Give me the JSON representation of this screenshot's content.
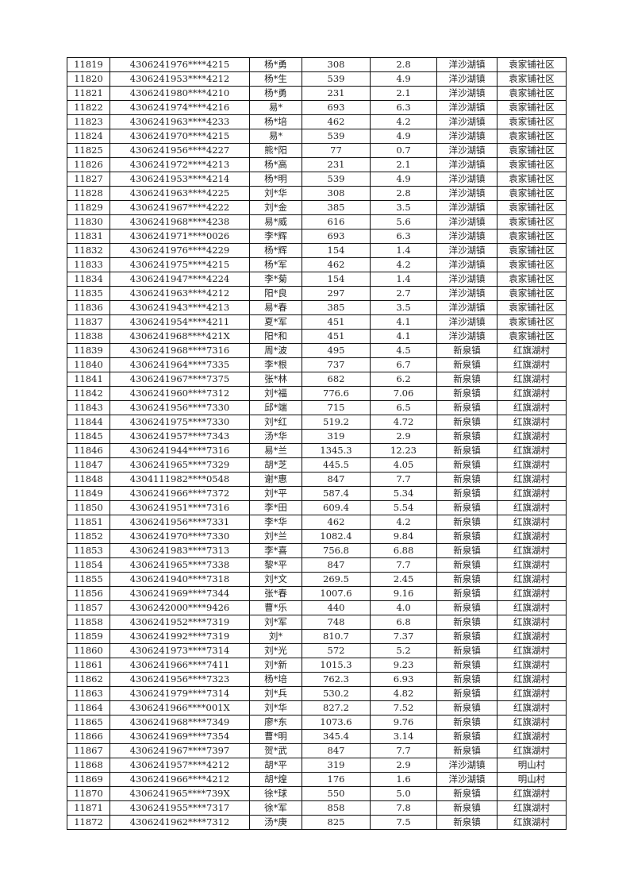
{
  "rows": [
    [
      "11819",
      "4306241976****4215",
      "杨*勇",
      "308",
      "2.8",
      "洋沙湖镇",
      "袁家铺社区"
    ],
    [
      "11820",
      "4306241953****4212",
      "杨*生",
      "539",
      "4.9",
      "洋沙湖镇",
      "袁家铺社区"
    ],
    [
      "11821",
      "4306241980****4210",
      "杨*勇",
      "231",
      "2.1",
      "洋沙湖镇",
      "袁家铺社区"
    ],
    [
      "11822",
      "4306241974****4216",
      "易*",
      "693",
      "6.3",
      "洋沙湖镇",
      "袁家铺社区"
    ],
    [
      "11823",
      "4306241963****4233",
      "杨*培",
      "462",
      "4.2",
      "洋沙湖镇",
      "袁家铺社区"
    ],
    [
      "11824",
      "4306241970****4215",
      "易*",
      "539",
      "4.9",
      "洋沙湖镇",
      "袁家铺社区"
    ],
    [
      "11825",
      "4306241956****4227",
      "熊*阳",
      "77",
      "0.7",
      "洋沙湖镇",
      "袁家铺社区"
    ],
    [
      "11826",
      "4306241972****4213",
      "杨*高",
      "231",
      "2.1",
      "洋沙湖镇",
      "袁家铺社区"
    ],
    [
      "11827",
      "4306241953****4214",
      "杨*明",
      "539",
      "4.9",
      "洋沙湖镇",
      "袁家铺社区"
    ],
    [
      "11828",
      "4306241963****4225",
      "刘*华",
      "308",
      "2.8",
      "洋沙湖镇",
      "袁家铺社区"
    ],
    [
      "11829",
      "4306241967****4222",
      "刘*金",
      "385",
      "3.5",
      "洋沙湖镇",
      "袁家铺社区"
    ],
    [
      "11830",
      "4306241968****4238",
      "易*威",
      "616",
      "5.6",
      "洋沙湖镇",
      "袁家铺社区"
    ],
    [
      "11831",
      "4306241971****0026",
      "李*辉",
      "693",
      "6.3",
      "洋沙湖镇",
      "袁家铺社区"
    ],
    [
      "11832",
      "4306241976****4229",
      "杨*辉",
      "154",
      "1.4",
      "洋沙湖镇",
      "袁家铺社区"
    ],
    [
      "11833",
      "4306241975****4215",
      "杨*军",
      "462",
      "4.2",
      "洋沙湖镇",
      "袁家铺社区"
    ],
    [
      "11834",
      "4306241947****4224",
      "李*菊",
      "154",
      "1.4",
      "洋沙湖镇",
      "袁家铺社区"
    ],
    [
      "11835",
      "4306241963****4212",
      "阳*良",
      "297",
      "2.7",
      "洋沙湖镇",
      "袁家铺社区"
    ],
    [
      "11836",
      "4306241943****4213",
      "易*春",
      "385",
      "3.5",
      "洋沙湖镇",
      "袁家铺社区"
    ],
    [
      "11837",
      "4306241954****4211",
      "夏*军",
      "451",
      "4.1",
      "洋沙湖镇",
      "袁家铺社区"
    ],
    [
      "11838",
      "4306241968****421X",
      "阳*和",
      "451",
      "4.1",
      "洋沙湖镇",
      "袁家铺社区"
    ],
    [
      "11839",
      "4306241968****7316",
      "周*波",
      "495",
      "4.5",
      "新泉镇",
      "红旗湖村"
    ],
    [
      "11840",
      "4306241964****7335",
      "李*根",
      "737",
      "6.7",
      "新泉镇",
      "红旗湖村"
    ],
    [
      "11841",
      "4306241967****7375",
      "张*林",
      "682",
      "6.2",
      "新泉镇",
      "红旗湖村"
    ],
    [
      "11842",
      "4306241960****7312",
      "刘*福",
      "776.6",
      "7.06",
      "新泉镇",
      "红旗湖村"
    ],
    [
      "11843",
      "4306241956****7330",
      "邱*端",
      "715",
      "6.5",
      "新泉镇",
      "红旗湖村"
    ],
    [
      "11844",
      "4306241975****7330",
      "刘*红",
      "519.2",
      "4.72",
      "新泉镇",
      "红旗湖村"
    ],
    [
      "11845",
      "4306241957****7343",
      "汤*华",
      "319",
      "2.9",
      "新泉镇",
      "红旗湖村"
    ],
    [
      "11846",
      "4306241944****7316",
      "易*兰",
      "1345.3",
      "12.23",
      "新泉镇",
      "红旗湖村"
    ],
    [
      "11847",
      "4306241965****7329",
      "胡*芝",
      "445.5",
      "4.05",
      "新泉镇",
      "红旗湖村"
    ],
    [
      "11848",
      "4304111982****0548",
      "谢*惠",
      "847",
      "7.7",
      "新泉镇",
      "红旗湖村"
    ],
    [
      "11849",
      "4306241966****7372",
      "刘*平",
      "587.4",
      "5.34",
      "新泉镇",
      "红旗湖村"
    ],
    [
      "11850",
      "4306241951****7316",
      "李*田",
      "609.4",
      "5.54",
      "新泉镇",
      "红旗湖村"
    ],
    [
      "11851",
      "4306241956****7331",
      "李*华",
      "462",
      "4.2",
      "新泉镇",
      "红旗湖村"
    ],
    [
      "11852",
      "4306241970****7330",
      "刘*兰",
      "1082.4",
      "9.84",
      "新泉镇",
      "红旗湖村"
    ],
    [
      "11853",
      "4306241983****7313",
      "李*喜",
      "756.8",
      "6.88",
      "新泉镇",
      "红旗湖村"
    ],
    [
      "11854",
      "4306241965****7338",
      "黎*平",
      "847",
      "7.7",
      "新泉镇",
      "红旗湖村"
    ],
    [
      "11855",
      "4306241940****7318",
      "刘*文",
      "269.5",
      "2.45",
      "新泉镇",
      "红旗湖村"
    ],
    [
      "11856",
      "4306241969****7344",
      "张*春",
      "1007.6",
      "9.16",
      "新泉镇",
      "红旗湖村"
    ],
    [
      "11857",
      "4306242000****9426",
      "曹*乐",
      "440",
      "4.0",
      "新泉镇",
      "红旗湖村"
    ],
    [
      "11858",
      "4306241952****7319",
      "刘*军",
      "748",
      "6.8",
      "新泉镇",
      "红旗湖村"
    ],
    [
      "11859",
      "4306241992****7319",
      "刘*",
      "810.7",
      "7.37",
      "新泉镇",
      "红旗湖村"
    ],
    [
      "11860",
      "4306241973****7314",
      "刘*光",
      "572",
      "5.2",
      "新泉镇",
      "红旗湖村"
    ],
    [
      "11861",
      "4306241966****7411",
      "刘*新",
      "1015.3",
      "9.23",
      "新泉镇",
      "红旗湖村"
    ],
    [
      "11862",
      "4306241956****7323",
      "杨*培",
      "762.3",
      "6.93",
      "新泉镇",
      "红旗湖村"
    ],
    [
      "11863",
      "4306241979****7314",
      "刘*兵",
      "530.2",
      "4.82",
      "新泉镇",
      "红旗湖村"
    ],
    [
      "11864",
      "4306241966****001X",
      "刘*华",
      "827.2",
      "7.52",
      "新泉镇",
      "红旗湖村"
    ],
    [
      "11865",
      "4306241968****7349",
      "廖*东",
      "1073.6",
      "9.76",
      "新泉镇",
      "红旗湖村"
    ],
    [
      "11866",
      "4306241969****7354",
      "曹*明",
      "345.4",
      "3.14",
      "新泉镇",
      "红旗湖村"
    ],
    [
      "11867",
      "4306241967****7397",
      "贺*武",
      "847",
      "7.7",
      "新泉镇",
      "红旗湖村"
    ],
    [
      "11868",
      "4306241957****4212",
      "胡*平",
      "319",
      "2.9",
      "洋沙湖镇",
      "明山村"
    ],
    [
      "11869",
      "4306241966****4212",
      "胡*煌",
      "176",
      "1.6",
      "洋沙湖镇",
      "明山村"
    ],
    [
      "11870",
      "4306241965****739X",
      "徐*球",
      "550",
      "5.0",
      "新泉镇",
      "红旗湖村"
    ],
    [
      "11871",
      "4306241955****7317",
      "徐*军",
      "858",
      "7.8",
      "新泉镇",
      "红旗湖村"
    ],
    [
      "11872",
      "4306241962****7312",
      "汤*庚",
      "825",
      "7.5",
      "新泉镇",
      "红旗湖村"
    ]
  ]
}
